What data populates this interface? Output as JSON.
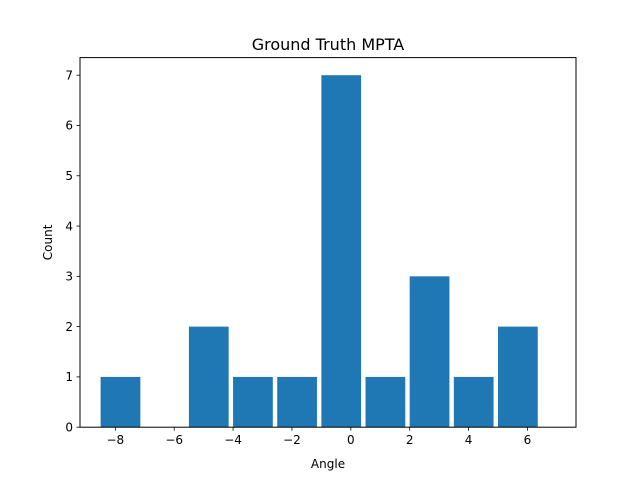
{
  "chart_data": {
    "type": "bar",
    "title": "Ground Truth MPTA",
    "xlabel": "Angle",
    "ylabel": "Count",
    "bins": [
      {
        "x0": -8.5,
        "x1": -7.0,
        "count": 1
      },
      {
        "x0": -7.0,
        "x1": -5.5,
        "count": 0
      },
      {
        "x0": -5.5,
        "x1": -4.0,
        "count": 2
      },
      {
        "x0": -4.0,
        "x1": -2.5,
        "count": 1
      },
      {
        "x0": -2.5,
        "x1": -1.0,
        "count": 1
      },
      {
        "x0": -1.0,
        "x1": 0.5,
        "count": 7
      },
      {
        "x0": 0.5,
        "x1": 2.0,
        "count": 1
      },
      {
        "x0": 2.0,
        "x1": 3.5,
        "count": 3
      },
      {
        "x0": 3.5,
        "x1": 5.0,
        "count": 1
      },
      {
        "x0": 5.0,
        "x1": 6.5,
        "count": 2
      }
    ],
    "xlim": [
      -9.2,
      7.65
    ],
    "ylim": [
      0,
      7.35
    ],
    "xticks": [
      -8,
      -6,
      -4,
      -2,
      0,
      2,
      4,
      6
    ],
    "xtick_labels": [
      "−8",
      "−6",
      "−4",
      "−2",
      "0",
      "2",
      "4",
      "6"
    ],
    "yticks": [
      0,
      1,
      2,
      3,
      4,
      5,
      6,
      7
    ],
    "ytick_labels": [
      "0",
      "1",
      "2",
      "3",
      "4",
      "5",
      "6",
      "7"
    ],
    "bar_color": "#1f77b4",
    "grid": false,
    "legend": "none"
  }
}
